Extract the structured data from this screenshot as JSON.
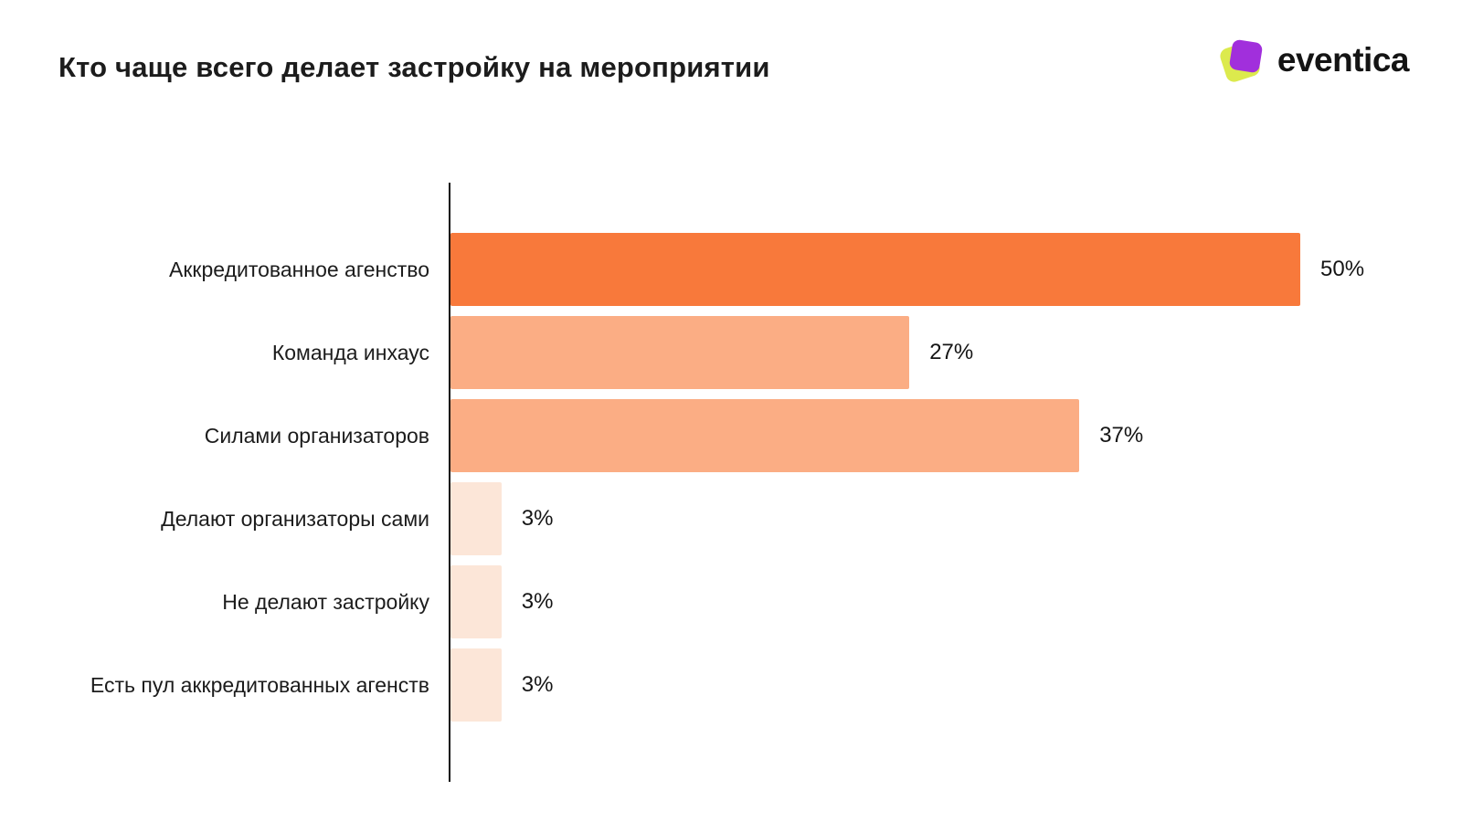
{
  "page": {
    "title": "Кто чаще всего делает застройку на мероприятии",
    "background_color": "#FFFFFF"
  },
  "logo": {
    "text": "eventica",
    "icon": "eventica-logo-icon",
    "icon_colors": {
      "lime": "#DCEA4D",
      "purple": "#A12FDC"
    }
  },
  "chart_data": {
    "type": "bar",
    "orientation": "horizontal",
    "title": "Кто чаще всего делает застройку на мероприятии",
    "categories": [
      "Аккредитованное агенство",
      "Команда инхаус",
      "Силами организаторов",
      "Делают организаторы сами",
      "Не делают застройку",
      "Есть пул аккредитованных агенств"
    ],
    "values": [
      50,
      27,
      37,
      3,
      3,
      3
    ],
    "value_labels": [
      "50%",
      "27%",
      "37%",
      "3%",
      "3%",
      "3%"
    ],
    "bar_colors": [
      "#F8793B",
      "#FBAD84",
      "#FBAD84",
      "#FCE6D8",
      "#FCE6D8",
      "#FCE6D8"
    ],
    "xlim": [
      0,
      56
    ],
    "grid": false,
    "legend": false,
    "axis_line_color": "#111111",
    "value_label_position": "outside-right"
  }
}
